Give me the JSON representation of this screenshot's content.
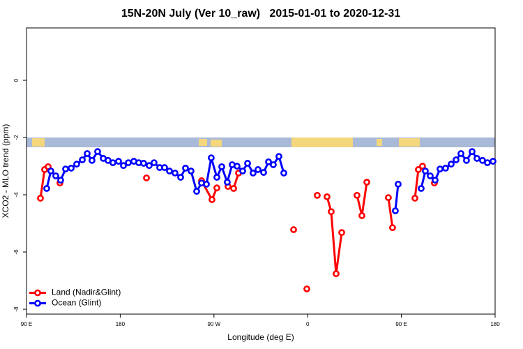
{
  "chart_data": {
    "type": "line",
    "title": "15N-20N July (Ver 10_raw)   2015-01-01 to 2020-12-31",
    "x_label": "Longitude (deg E)",
    "y_label": "XCO2 - MLO trend (ppm)",
    "xlim": [
      90,
      540
    ],
    "ylim": [
      -8.17,
      1.83
    ],
    "xticks": [
      {
        "value": 90,
        "label": "90 E"
      },
      180,
      {
        "value": 270,
        "label": "90 W"
      },
      {
        "value": 360,
        "label": "0"
      },
      {
        "value": 450,
        "label": "90 E"
      },
      {
        "value": 540,
        "label": "180"
      }
    ],
    "yticks": [
      0,
      -2,
      -4,
      -6,
      -8
    ],
    "legend": "bottom-left",
    "series": [
      {
        "name": "Land (Nadir&Glint)",
        "color": "#ff0000",
        "x": [
          103.4,
          107.4,
          110.8,
          null,
          122.1,
          null,
          205.2,
          null,
          258.1,
          268.1,
          272.8,
          null,
          283.5,
          288.9,
          293.6,
          null,
          346.5,
          null,
          359.2,
          null,
          369.2,
          null,
          378.6,
          382.6,
          387.3,
          392.7,
          null,
          407.4,
          412.1,
          416.8,
          null,
          437.5,
          441.5,
          null,
          463.0,
          466.3,
          470.3,
          null,
          481.7
        ],
        "values": [
          -4.12,
          -3.12,
          -3.02,
          null,
          -3.59,
          null,
          -3.41,
          null,
          -3.51,
          -4.17,
          -3.76,
          null,
          -3.71,
          -3.78,
          -3.24,
          null,
          -5.22,
          null,
          -7.29,
          null,
          -4.02,
          null,
          -4.07,
          -4.59,
          -6.76,
          -5.32,
          null,
          -4.02,
          -4.73,
          -3.56,
          null,
          -4.1,
          -5.15,
          null,
          -4.12,
          -3.12,
          -3.0,
          null,
          -3.59
        ]
      },
      {
        "name": "Ocean (Glint)",
        "color": "#0000ff",
        "x": [
          109.4,
          113.4,
          118.1,
          122.8,
          127.5,
          132.9,
          138.2,
          143.6,
          148.3,
          152.9,
          158.3,
          163.7,
          168.3,
          173.0,
          178.4,
          183.1,
          187.8,
          193.1,
          197.8,
          202.5,
          207.8,
          212.5,
          217.9,
          222.6,
          227.3,
          232.6,
          238.0,
          242.7,
          248.0,
          253.4,
          258.1,
          262.8,
          267.4,
          272.8,
          277.5,
          282.8,
          287.5,
          292.2,
          297.6,
          302.3,
          307.6,
          312.3,
          317.7,
          322.4,
          327.0,
          332.4,
          337.1,
          null,
          444.2,
          446.9,
          null,
          469.0,
          473.0,
          477.7,
          482.4,
          487.1,
          492.4,
          497.8,
          502.5,
          507.2,
          512.5,
          517.9,
          522.6,
          527.9,
          532.6,
          538.0
        ],
        "values": [
          -3.78,
          -3.17,
          -3.34,
          -3.49,
          -3.1,
          -3.07,
          -2.93,
          -2.78,
          -2.56,
          -2.8,
          -2.49,
          -2.73,
          -2.8,
          -2.88,
          -2.83,
          -2.98,
          -2.88,
          -2.83,
          -2.88,
          -2.9,
          -2.98,
          -2.88,
          -3.05,
          -3.05,
          -3.17,
          -3.24,
          -3.39,
          -3.07,
          -3.17,
          -3.88,
          -3.59,
          -3.63,
          -2.71,
          -3.39,
          -3.02,
          -3.56,
          -2.95,
          -3.0,
          -3.17,
          -2.9,
          -3.24,
          -3.12,
          -3.22,
          -2.85,
          -2.95,
          -2.66,
          -3.24,
          null,
          -4.56,
          -3.63,
          null,
          -3.78,
          -3.17,
          -3.34,
          -3.49,
          -3.1,
          -3.07,
          -2.93,
          -2.78,
          -2.56,
          -2.8,
          -2.49,
          -2.73,
          -2.8,
          -2.88,
          -2.83
        ]
      }
    ]
  }
}
